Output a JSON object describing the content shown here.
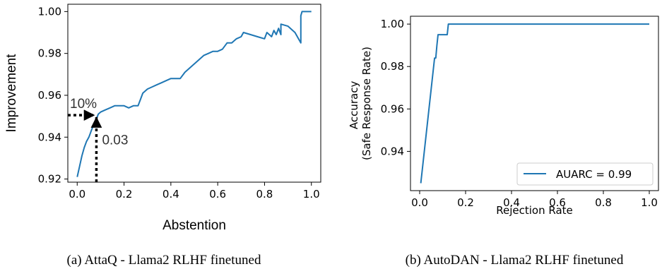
{
  "chart_data": [
    {
      "type": "line",
      "xlabel": "Abstention",
      "ylabel": "Improvement",
      "caption": "(a) AttaQ - Llama2 RLHF finetuned",
      "xlim": [
        -0.04,
        1.04
      ],
      "ylim": [
        0.9185,
        1.0035
      ],
      "xticks": [
        "0.0",
        "0.2",
        "0.4",
        "0.6",
        "0.8",
        "1.0"
      ],
      "xtick_values": [
        0.0,
        0.2,
        0.4,
        0.6,
        0.8,
        1.0
      ],
      "yticks": [
        "0.92",
        "0.94",
        "0.96",
        "0.98",
        "1.00"
      ],
      "ytick_values": [
        0.92,
        0.94,
        0.96,
        0.98,
        1.0
      ],
      "grid": false,
      "color": "#1f77b4",
      "series": [
        {
          "x": [
            0.0,
            0.01,
            0.02,
            0.03,
            0.04,
            0.05,
            0.06,
            0.07,
            0.08,
            0.09,
            0.1,
            0.12,
            0.14,
            0.16,
            0.18,
            0.2,
            0.22,
            0.24,
            0.26,
            0.27,
            0.28,
            0.3,
            0.32,
            0.34,
            0.36,
            0.38,
            0.4,
            0.42,
            0.44,
            0.46,
            0.48,
            0.5,
            0.52,
            0.54,
            0.56,
            0.58,
            0.6,
            0.62,
            0.64,
            0.66,
            0.68,
            0.7,
            0.71,
            0.74,
            0.77,
            0.8,
            0.81,
            0.83,
            0.84,
            0.85,
            0.86,
            0.87,
            0.87,
            0.9,
            0.93,
            0.955,
            0.955,
            0.96,
            1.0
          ],
          "y": [
            0.921,
            0.926,
            0.931,
            0.935,
            0.938,
            0.94,
            0.943,
            0.946,
            0.948,
            0.951,
            0.952,
            0.953,
            0.954,
            0.955,
            0.955,
            0.955,
            0.954,
            0.955,
            0.955,
            0.958,
            0.961,
            0.963,
            0.964,
            0.965,
            0.966,
            0.967,
            0.968,
            0.968,
            0.968,
            0.971,
            0.973,
            0.975,
            0.977,
            0.979,
            0.98,
            0.981,
            0.981,
            0.982,
            0.985,
            0.985,
            0.987,
            0.988,
            0.99,
            0.989,
            0.988,
            0.987,
            0.99,
            0.988,
            0.991,
            0.989,
            0.992,
            0.989,
            0.994,
            0.993,
            0.99,
            0.985,
            0.998,
            1.0,
            1.0
          ]
        }
      ],
      "annotations": [
        {
          "text": "10%",
          "arrow": "horizontal",
          "from": [
            -0.04,
            0.9505
          ],
          "to": [
            0.082,
            0.9505
          ]
        },
        {
          "text": "0.03",
          "arrow": "vertical",
          "from": [
            0.082,
            0.9185
          ],
          "to": [
            0.082,
            0.9505
          ]
        }
      ]
    },
    {
      "type": "line",
      "xlabel": "Rejection Rate",
      "ylabel": "Accuracy\n(Safe Response Rate)",
      "ylabel_lines": [
        "Accuracy",
        "(Safe Response Rate)"
      ],
      "caption": "(b) AutoDAN - Llama2 RLHF finetuned",
      "xlim": [
        -0.04,
        1.04
      ],
      "ylim": [
        0.9215,
        1.0037
      ],
      "xticks": [
        "0.0",
        "0.2",
        "0.4",
        "0.6",
        "0.8",
        "1.0"
      ],
      "xtick_values": [
        0.0,
        0.2,
        0.4,
        0.6,
        0.8,
        1.0
      ],
      "yticks": [
        "0.94",
        "0.96",
        "0.98",
        "1.00"
      ],
      "ytick_values": [
        0.94,
        0.96,
        0.98,
        1.0
      ],
      "grid": false,
      "legend_position": "lower right",
      "color": "#1f77b4",
      "series": [
        {
          "name": "AUARC = 0.99",
          "x": [
            0.005,
            0.065,
            0.07,
            0.075,
            0.08,
            0.085,
            0.11,
            0.12,
            0.125,
            1.0
          ],
          "y": [
            0.925,
            0.984,
            0.984,
            0.99,
            0.995,
            0.995,
            0.995,
            0.995,
            1.0,
            1.0
          ]
        }
      ]
    }
  ]
}
